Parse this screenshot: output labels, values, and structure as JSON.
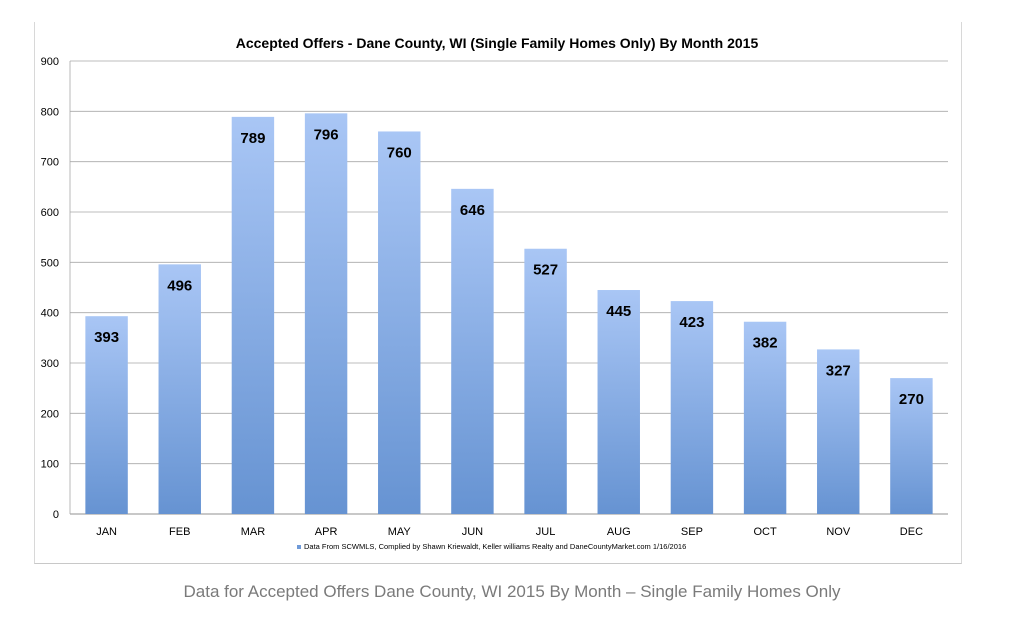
{
  "chart_data": {
    "type": "bar",
    "title": "Accepted Offers - Dane County, WI (Single Family Homes Only) By Month 2015",
    "categories": [
      "JAN",
      "FEB",
      "MAR",
      "APR",
      "MAY",
      "JUN",
      "JUL",
      "AUG",
      "SEP",
      "OCT",
      "NOV",
      "DEC"
    ],
    "values": [
      393,
      496,
      789,
      796,
      760,
      646,
      527,
      445,
      423,
      382,
      327,
      270
    ],
    "ylim": [
      0,
      900
    ],
    "yticks": [
      0,
      100,
      200,
      300,
      400,
      500,
      600,
      700,
      800,
      900
    ],
    "grid": true,
    "legend": {
      "position": "bottom",
      "label": "Data From SCWMLS, Complied by Shawn Kriewaldt, Keller williams Realty and DaneCountyMarket.com 1/16/2016"
    },
    "colors": {
      "bar_top": "#a9c6f5",
      "bar_bottom": "#6693d2",
      "grid": "#a8a8a8"
    }
  },
  "caption": "Data for Accepted Offers Dane County, WI 2015 By Month – Single Family Homes Only"
}
